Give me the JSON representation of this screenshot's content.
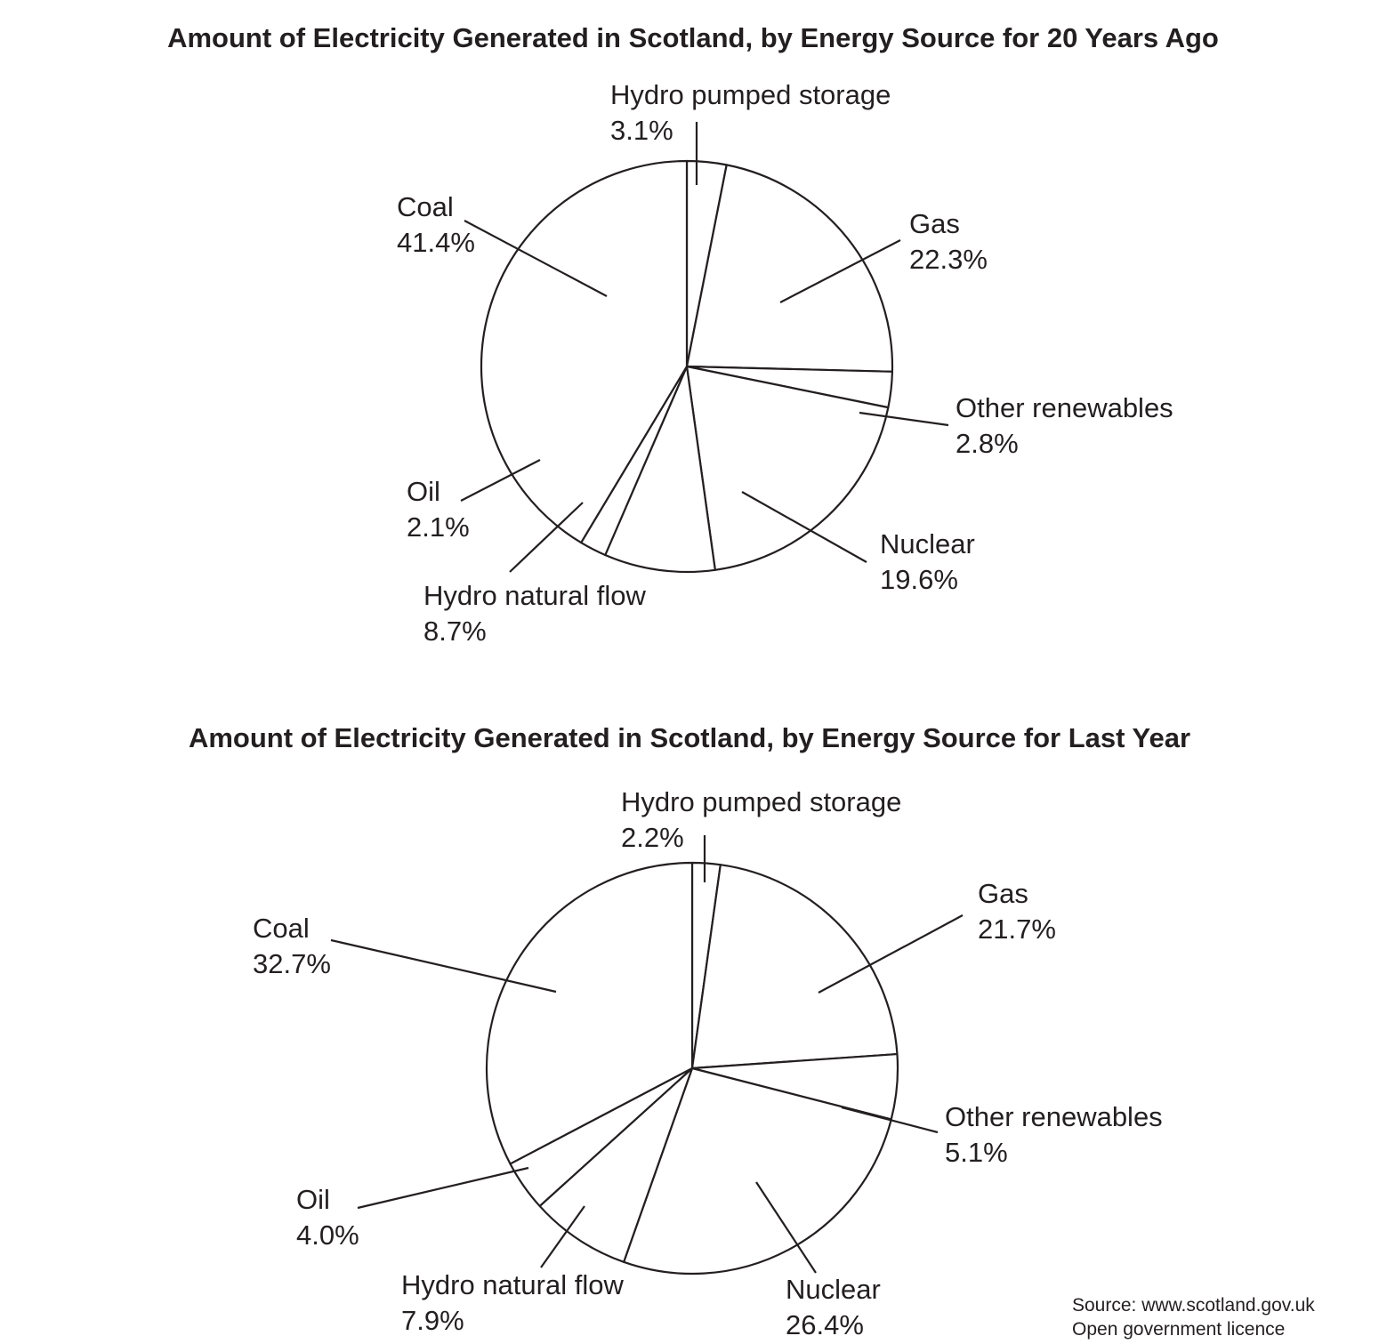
{
  "colors": {
    "ink": "#231f20",
    "fill": "#ffffff"
  },
  "chart_data": [
    {
      "type": "pie",
      "title": "Amount of Electricity Generated in Scotland, by Energy Source for 20 Years Ago",
      "slices": [
        {
          "name": "Hydro pumped storage",
          "value": 3.1,
          "value_label": "3.1%"
        },
        {
          "name": "Gas",
          "value": 22.3,
          "value_label": "22.3%"
        },
        {
          "name": "Other renewables",
          "value": 2.8,
          "value_label": "2.8%"
        },
        {
          "name": "Nuclear",
          "value": 19.6,
          "value_label": "19.6%"
        },
        {
          "name": "Hydro natural flow",
          "value": 8.7,
          "value_label": "8.7%"
        },
        {
          "name": "Oil",
          "value": 2.1,
          "value_label": "2.1%"
        },
        {
          "name": "Coal",
          "value": 41.4,
          "value_label": "41.4%"
        }
      ]
    },
    {
      "type": "pie",
      "title": "Amount of Electricity Generated in Scotland, by Energy Source for Last Year",
      "slices": [
        {
          "name": "Hydro pumped storage",
          "value": 2.2,
          "value_label": "2.2%"
        },
        {
          "name": "Gas",
          "value": 21.7,
          "value_label": "21.7%"
        },
        {
          "name": "Other renewables",
          "value": 5.1,
          "value_label": "5.1%"
        },
        {
          "name": "Nuclear",
          "value": 26.4,
          "value_label": "26.4%"
        },
        {
          "name": "Hydro natural flow",
          "value": 7.9,
          "value_label": "7.9%"
        },
        {
          "name": "Oil",
          "value": 4.0,
          "value_label": "4.0%"
        },
        {
          "name": "Coal",
          "value": 32.7,
          "value_label": "32.7%"
        }
      ]
    }
  ],
  "source": {
    "line1": "Source: www.scotland.gov.uk",
    "line2": "Open government licence"
  }
}
